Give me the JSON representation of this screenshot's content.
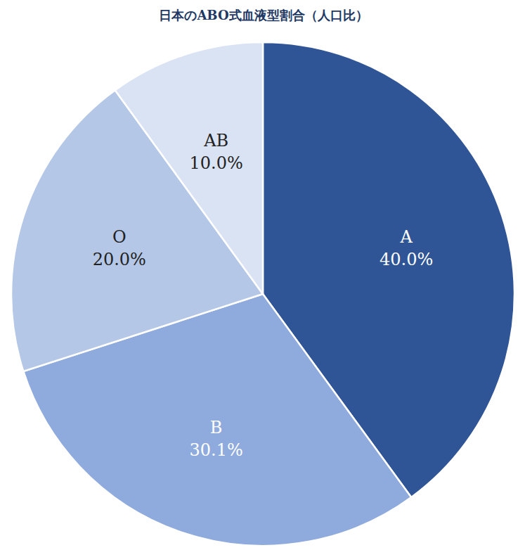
{
  "chart_data": {
    "type": "pie",
    "title": "日本のABO式血液型割合（人口比）",
    "categories": [
      "A",
      "B",
      "O",
      "AB"
    ],
    "values": [
      40.0,
      30.1,
      20.0,
      10.0
    ],
    "value_labels": [
      "40.0%",
      "30.1%",
      "20.0%",
      "10.0%"
    ],
    "colors": [
      "#2f5597",
      "#8faadc",
      "#b4c7e7",
      "#dae3f3"
    ],
    "data_labels": true
  }
}
